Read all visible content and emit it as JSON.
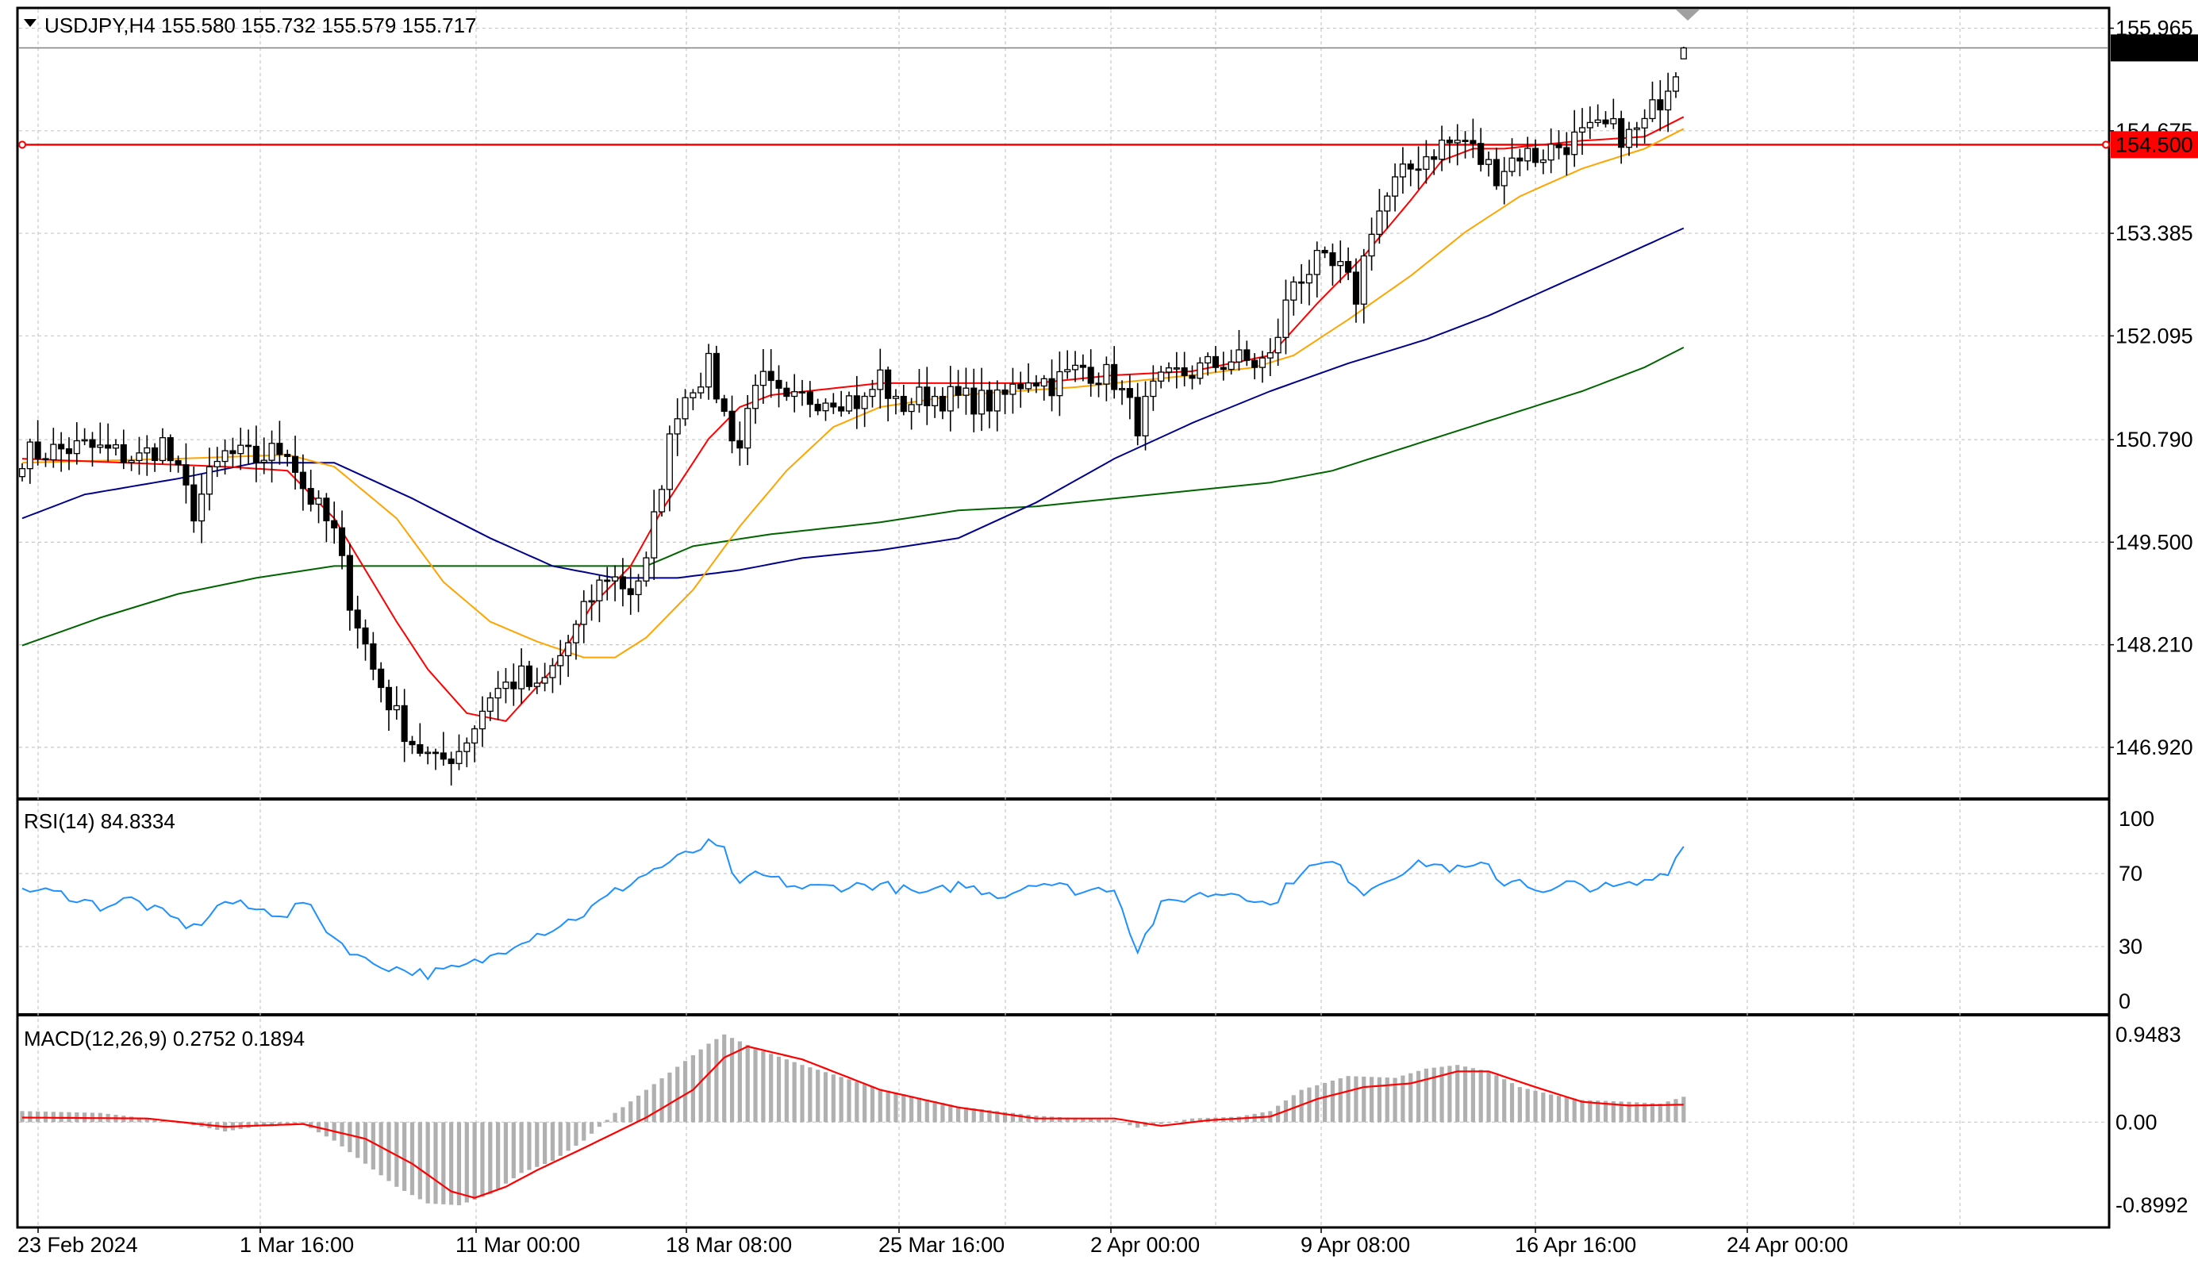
{
  "chart_data": [
    {
      "type": "candlestick",
      "panel": "price",
      "header": "USDJPY,H4  155.580 155.732 155.579 155.717",
      "symbol": "USDJPY",
      "timeframe": "H4",
      "ohlc_last": {
        "open": 155.58,
        "high": 155.732,
        "low": 155.579,
        "close": 155.717
      },
      "price_ticks": [
        "155.965",
        "154.675",
        "153.385",
        "152.095",
        "150.790",
        "149.500",
        "148.210",
        "146.920"
      ],
      "current_price_label": "155.717",
      "current_price_value": 155.717,
      "hline_label": "154.500",
      "hline_value": 154.5,
      "hline_color": "#ff0000",
      "ylim": [
        146.3,
        156.2
      ],
      "x_ticks": [
        "23 Feb 2024",
        "1 Mar 16:00",
        "11 Mar 00:00",
        "18 Mar 08:00",
        "25 Mar 16:00",
        "2 Apr 00:00",
        "9 Apr 08:00",
        "16 Apr 16:00",
        "24 Apr 00:00"
      ],
      "bars": 214,
      "closes_anchor": [
        [
          0,
          150.6
        ],
        [
          8,
          150.7
        ],
        [
          15,
          150.55
        ],
        [
          18,
          150.75
        ],
        [
          22,
          149.9
        ],
        [
          24,
          150.3
        ],
        [
          26,
          150.6
        ],
        [
          30,
          150.55
        ],
        [
          34,
          150.7
        ],
        [
          36,
          150.2
        ],
        [
          40,
          149.6
        ],
        [
          42,
          148.8
        ],
        [
          45,
          147.9
        ],
        [
          48,
          147.3
        ],
        [
          50,
          147.0
        ],
        [
          53,
          146.7
        ],
        [
          56,
          146.9
        ],
        [
          58,
          147.2
        ],
        [
          60,
          147.6
        ],
        [
          62,
          147.7
        ],
        [
          64,
          147.8
        ],
        [
          66,
          147.6
        ],
        [
          68,
          147.9
        ],
        [
          71,
          148.4
        ],
        [
          73,
          148.8
        ],
        [
          75,
          149.1
        ],
        [
          78,
          148.9
        ],
        [
          80,
          149.2
        ],
        [
          82,
          150.3
        ],
        [
          84,
          151.2
        ],
        [
          86,
          151.5
        ],
        [
          88,
          151.7
        ],
        [
          90,
          151.1
        ],
        [
          92,
          150.7
        ],
        [
          94,
          151.6
        ],
        [
          96,
          151.4
        ],
        [
          98,
          151.2
        ],
        [
          100,
          151.3
        ],
        [
          104,
          151.35
        ],
        [
          108,
          151.25
        ],
        [
          110,
          151.6
        ],
        [
          112,
          151.2
        ],
        [
          116,
          151.35
        ],
        [
          120,
          151.3
        ],
        [
          125,
          151.25
        ],
        [
          129,
          151.6
        ],
        [
          132,
          151.5
        ],
        [
          136,
          151.7
        ],
        [
          140,
          151.55
        ],
        [
          143,
          151.0
        ],
        [
          145,
          151.4
        ],
        [
          148,
          151.6
        ],
        [
          152,
          151.7
        ],
        [
          155,
          151.8
        ],
        [
          158,
          151.75
        ],
        [
          160,
          151.8
        ],
        [
          163,
          152.8
        ],
        [
          166,
          153.0
        ],
        [
          169,
          152.9
        ],
        [
          171,
          152.6
        ],
        [
          173,
          153.5
        ],
        [
          176,
          154.0
        ],
        [
          179,
          154.3
        ],
        [
          182,
          154.5
        ],
        [
          185,
          154.55
        ],
        [
          187,
          154.3
        ],
        [
          189,
          154.15
        ],
        [
          192,
          154.4
        ],
        [
          194,
          154.35
        ],
        [
          196,
          154.45
        ],
        [
          200,
          154.6
        ],
        [
          203,
          154.7
        ],
        [
          206,
          154.6
        ],
        [
          208,
          154.75
        ],
        [
          210,
          155.1
        ],
        [
          212,
          155.5
        ],
        [
          213,
          155.717
        ]
      ],
      "ma_colors": {
        "ma_fast": "#ff0000",
        "ma_mid": "#ffa500",
        "ma_slow": "#00008b",
        "ma_long": "#006400"
      },
      "ma_anchor_fast": [
        [
          0,
          150.55
        ],
        [
          26,
          150.45
        ],
        [
          34,
          150.4
        ],
        [
          40,
          149.8
        ],
        [
          48,
          148.5
        ],
        [
          52,
          147.9
        ],
        [
          57,
          147.35
        ],
        [
          62,
          147.25
        ],
        [
          68,
          147.9
        ],
        [
          73,
          148.7
        ],
        [
          78,
          149.2
        ],
        [
          82,
          149.9
        ],
        [
          88,
          150.8
        ],
        [
          92,
          151.2
        ],
        [
          96,
          151.35
        ],
        [
          110,
          151.5
        ],
        [
          130,
          151.5
        ],
        [
          140,
          151.6
        ],
        [
          150,
          151.65
        ],
        [
          160,
          151.85
        ],
        [
          166,
          152.5
        ],
        [
          172,
          153.1
        ],
        [
          178,
          153.8
        ],
        [
          182,
          154.3
        ],
        [
          186,
          154.45
        ],
        [
          190,
          154.45
        ],
        [
          200,
          154.55
        ],
        [
          208,
          154.6
        ],
        [
          213,
          154.85
        ]
      ],
      "ma_anchor_mid": [
        [
          0,
          150.5
        ],
        [
          20,
          150.55
        ],
        [
          34,
          150.6
        ],
        [
          40,
          150.45
        ],
        [
          48,
          149.8
        ],
        [
          54,
          149.0
        ],
        [
          60,
          148.5
        ],
        [
          66,
          148.25
        ],
        [
          72,
          148.05
        ],
        [
          76,
          148.05
        ],
        [
          80,
          148.3
        ],
        [
          86,
          148.9
        ],
        [
          92,
          149.7
        ],
        [
          98,
          150.4
        ],
        [
          104,
          150.95
        ],
        [
          110,
          151.2
        ],
        [
          120,
          151.35
        ],
        [
          135,
          151.45
        ],
        [
          150,
          151.6
        ],
        [
          158,
          151.7
        ],
        [
          163,
          151.85
        ],
        [
          170,
          152.3
        ],
        [
          178,
          152.85
        ],
        [
          185,
          153.4
        ],
        [
          192,
          153.85
        ],
        [
          200,
          154.2
        ],
        [
          208,
          154.45
        ],
        [
          213,
          154.7
        ]
      ],
      "ma_anchor_slow": [
        [
          0,
          149.8
        ],
        [
          8,
          150.1
        ],
        [
          20,
          150.3
        ],
        [
          30,
          150.5
        ],
        [
          40,
          150.5
        ],
        [
          50,
          150.05
        ],
        [
          60,
          149.55
        ],
        [
          68,
          149.2
        ],
        [
          76,
          149.05
        ],
        [
          84,
          149.05
        ],
        [
          92,
          149.15
        ],
        [
          100,
          149.3
        ],
        [
          110,
          149.4
        ],
        [
          120,
          149.55
        ],
        [
          130,
          150.0
        ],
        [
          140,
          150.55
        ],
        [
          150,
          151.0
        ],
        [
          160,
          151.4
        ],
        [
          170,
          151.75
        ],
        [
          180,
          152.05
        ],
        [
          188,
          152.35
        ],
        [
          196,
          152.7
        ],
        [
          204,
          153.05
        ],
        [
          213,
          153.45
        ]
      ],
      "ma_anchor_long": [
        [
          0,
          148.2
        ],
        [
          10,
          148.55
        ],
        [
          20,
          148.85
        ],
        [
          30,
          149.05
        ],
        [
          40,
          149.2
        ],
        [
          50,
          149.2
        ],
        [
          60,
          149.2
        ],
        [
          70,
          149.2
        ],
        [
          80,
          149.2
        ],
        [
          86,
          149.45
        ],
        [
          96,
          149.6
        ],
        [
          110,
          149.75
        ],
        [
          120,
          149.9
        ],
        [
          130,
          149.95
        ],
        [
          140,
          150.05
        ],
        [
          150,
          150.15
        ],
        [
          160,
          150.25
        ],
        [
          168,
          150.4
        ],
        [
          176,
          150.65
        ],
        [
          184,
          150.9
        ],
        [
          192,
          151.15
        ],
        [
          200,
          151.4
        ],
        [
          208,
          151.7
        ],
        [
          213,
          151.95
        ]
      ]
    },
    {
      "type": "line",
      "panel": "rsi",
      "header": "RSI(14) 84.8334",
      "y_ticks": [
        "100",
        "70",
        "30",
        "0"
      ],
      "levels": [
        70,
        30
      ],
      "ylim": [
        0,
        100
      ],
      "color": "#1e90ff",
      "anchor": [
        [
          0,
          62
        ],
        [
          6,
          58
        ],
        [
          10,
          52
        ],
        [
          14,
          56
        ],
        [
          18,
          48
        ],
        [
          22,
          40
        ],
        [
          26,
          55
        ],
        [
          30,
          50
        ],
        [
          34,
          48
        ],
        [
          36,
          55
        ],
        [
          40,
          35
        ],
        [
          44,
          22
        ],
        [
          48,
          18
        ],
        [
          52,
          15
        ],
        [
          56,
          18
        ],
        [
          60,
          24
        ],
        [
          64,
          34
        ],
        [
          68,
          40
        ],
        [
          72,
          48
        ],
        [
          76,
          60
        ],
        [
          80,
          70
        ],
        [
          84,
          78
        ],
        [
          88,
          86
        ],
        [
          90,
          82
        ],
        [
          92,
          62
        ],
        [
          94,
          70
        ],
        [
          100,
          62
        ],
        [
          110,
          64
        ],
        [
          116,
          58
        ],
        [
          120,
          64
        ],
        [
          126,
          58
        ],
        [
          130,
          66
        ],
        [
          136,
          60
        ],
        [
          140,
          63
        ],
        [
          143,
          28
        ],
        [
          146,
          52
        ],
        [
          150,
          58
        ],
        [
          156,
          60
        ],
        [
          160,
          52
        ],
        [
          164,
          72
        ],
        [
          168,
          76
        ],
        [
          172,
          60
        ],
        [
          176,
          70
        ],
        [
          180,
          76
        ],
        [
          184,
          72
        ],
        [
          188,
          74
        ],
        [
          190,
          64
        ],
        [
          192,
          68
        ],
        [
          195,
          58
        ],
        [
          198,
          64
        ],
        [
          204,
          62
        ],
        [
          208,
          65
        ],
        [
          211,
          72
        ],
        [
          213,
          84.8334
        ]
      ]
    },
    {
      "type": "bar",
      "panel": "macd",
      "header": "MACD(12,26,9) 0.2752 0.1894",
      "y_ticks": [
        "0.9483",
        "0.00",
        "-0.8992"
      ],
      "ylim": [
        -1.08,
        1.12
      ],
      "bar_color": "#b0b0b0",
      "signal_color": "#ff0000",
      "macd_anchor": [
        [
          0,
          0.12
        ],
        [
          10,
          0.1
        ],
        [
          20,
          0.0
        ],
        [
          26,
          -0.1
        ],
        [
          30,
          -0.05
        ],
        [
          36,
          -0.02
        ],
        [
          40,
          -0.2
        ],
        [
          44,
          -0.45
        ],
        [
          48,
          -0.7
        ],
        [
          52,
          -0.88
        ],
        [
          56,
          -0.9
        ],
        [
          60,
          -0.78
        ],
        [
          64,
          -0.55
        ],
        [
          68,
          -0.42
        ],
        [
          72,
          -0.2
        ],
        [
          76,
          0.1
        ],
        [
          80,
          0.35
        ],
        [
          84,
          0.6
        ],
        [
          88,
          0.85
        ],
        [
          90,
          0.95
        ],
        [
          94,
          0.8
        ],
        [
          100,
          0.62
        ],
        [
          110,
          0.36
        ],
        [
          120,
          0.17
        ],
        [
          130,
          0.07
        ],
        [
          140,
          0.02
        ],
        [
          143,
          -0.06
        ],
        [
          146,
          -0.02
        ],
        [
          150,
          0.04
        ],
        [
          156,
          0.06
        ],
        [
          160,
          0.12
        ],
        [
          164,
          0.35
        ],
        [
          170,
          0.5
        ],
        [
          176,
          0.48
        ],
        [
          180,
          0.58
        ],
        [
          184,
          0.62
        ],
        [
          188,
          0.55
        ],
        [
          192,
          0.38
        ],
        [
          196,
          0.3
        ],
        [
          200,
          0.24
        ],
        [
          206,
          0.22
        ],
        [
          210,
          0.2
        ],
        [
          213,
          0.2752
        ]
      ],
      "signal_anchor": [
        [
          0,
          0.05
        ],
        [
          16,
          0.04
        ],
        [
          26,
          -0.05
        ],
        [
          36,
          -0.02
        ],
        [
          44,
          -0.18
        ],
        [
          50,
          -0.45
        ],
        [
          55,
          -0.75
        ],
        [
          58,
          -0.82
        ],
        [
          62,
          -0.7
        ],
        [
          66,
          -0.52
        ],
        [
          72,
          -0.28
        ],
        [
          80,
          0.05
        ],
        [
          86,
          0.35
        ],
        [
          90,
          0.7
        ],
        [
          93,
          0.82
        ],
        [
          100,
          0.68
        ],
        [
          110,
          0.35
        ],
        [
          120,
          0.16
        ],
        [
          130,
          0.04
        ],
        [
          140,
          0.04
        ],
        [
          146,
          -0.04
        ],
        [
          152,
          0.02
        ],
        [
          160,
          0.06
        ],
        [
          166,
          0.25
        ],
        [
          172,
          0.38
        ],
        [
          178,
          0.42
        ],
        [
          184,
          0.55
        ],
        [
          188,
          0.55
        ],
        [
          194,
          0.38
        ],
        [
          200,
          0.22
        ],
        [
          206,
          0.18
        ],
        [
          213,
          0.1894
        ]
      ]
    }
  ]
}
